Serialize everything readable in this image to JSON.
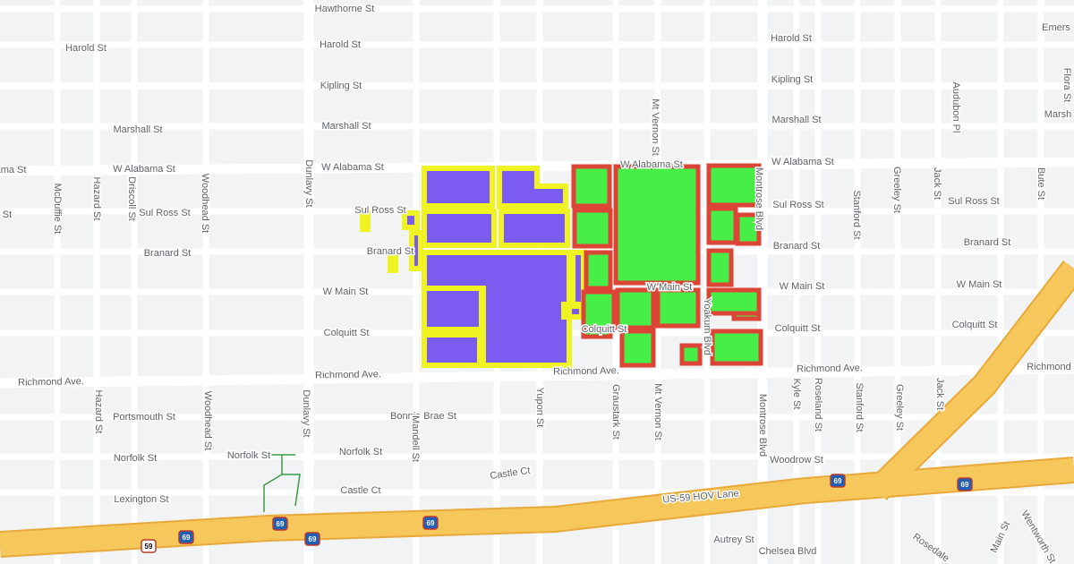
{
  "labels": [
    "Hawthorne St",
    "Harold St",
    "Harold St",
    "Harold St",
    "Emers",
    "Kipling St",
    "Kipling St",
    "Marshall St",
    "Marshall St",
    "Marshall St",
    "Marsh",
    "ama St",
    "W Alabama St",
    "W Alabama St",
    "W Alabama St",
    "W Alabama St",
    "St",
    "Sul Ross St",
    "Sul Ross St",
    "Sul Ross St",
    "Sul Ross St",
    "Branard St",
    "Branard St",
    "Branard St",
    "Branard St",
    "W Main St",
    "W Main St",
    "W Main St",
    "W Main St",
    "Colquitt St",
    "Colquitt St",
    "Colquitt St",
    "Colquitt St",
    "Richmond Ave.",
    "Richmond Ave.",
    "Richmond Ave.",
    "Richmond Ave.",
    "Richmond",
    "Portsmouth St",
    "Bonnie Brae St",
    "Norfolk St",
    "Norfolk St",
    "Norfolk St",
    "Castle Ct",
    "Castle Ct",
    "Lexington St",
    "Woodrow St",
    "US-59 HOV Lane",
    "Autrey St",
    "Chelsea Blvd",
    "McDuffie St",
    "Hazard St",
    "Driscoll St",
    "Woodhead St",
    "Dunlavy St",
    "Montrose Blvd",
    "Stanford St",
    "Greeley St",
    "Jack St",
    "Bute St",
    "Audubon Pl",
    "Flora St",
    "Yupon St",
    "Graustark St",
    "Mt Vernon St",
    "Mt Vernon St",
    "Montrose Blvd",
    "Kyle St",
    "Roseland St",
    "Stanford St",
    "Greeley St",
    "Jack St",
    "Hazard St",
    "Woodhead St",
    "Dunlavy St",
    "Mandell St",
    "Yoakum Blvd",
    "Main St",
    "Wentworth St",
    "Rosedale"
  ],
  "shields": [
    "69",
    "69",
    "69",
    "69",
    "69",
    "69",
    "59"
  ]
}
